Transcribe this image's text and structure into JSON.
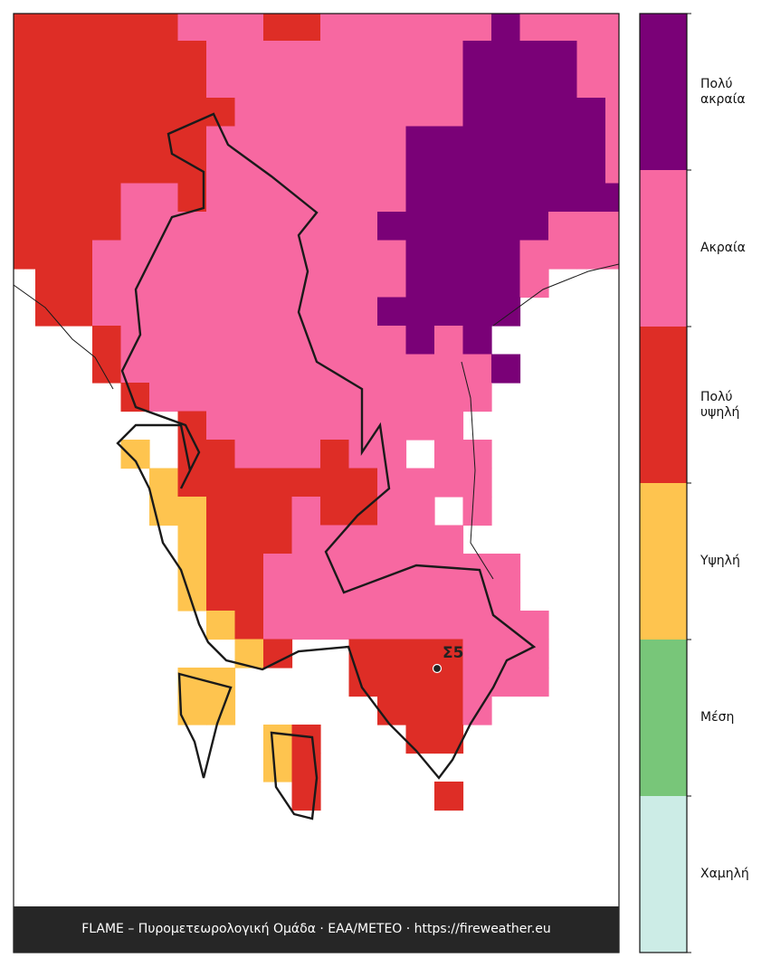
{
  "legend": {
    "levels": [
      {
        "label": "Πολύ ακραία",
        "color": "#7a0177"
      },
      {
        "label": "Ακραία",
        "color": "#f768a1"
      },
      {
        "label": "Πολύ υψηλή",
        "color": "#de2d26"
      },
      {
        "label": "Υψηλή",
        "color": "#fec44f"
      },
      {
        "label": "Μέση",
        "color": "#78c679"
      },
      {
        "label": "Χαμηλή",
        "color": "#ccece6"
      }
    ]
  },
  "map": {
    "grid": [
      "2222221112211111101111",
      "2222222111111111000011",
      "2222222111111111000011",
      "2222222211111111000001",
      "2222222111111100000001",
      "2222222111111100000001",
      "2222112111111100000000",
      "2222111111111000000111",
      "2221111111111100001111",
      "-221111111111100001---",
      "-22111111111100000----",
      "---21111111111010-----",
      "---211111111111110------",
      "----2111111111111-----",
      "------2111111111------",
      "----3-22111211 11------",
      "-----322222221111-----",
      "-----3322212211 1------",
      "------3222111111------",
      "------322111111111-----",
      "------322111111111-----",
      "-------321111111111---",
      "--------32--2222111---",
      "------33----2222111---",
      "------33-----2221-----",
      "---------32---22------",
      "---------32-----------",
      "----------2----2------"
    ],
    "station": "Σ5"
  },
  "footer": "FLAME – Πυρομετεωρολογική Ομάδα · ΕΑΑ/ΜΕΤΕΟ · https://fireweather.eu"
}
